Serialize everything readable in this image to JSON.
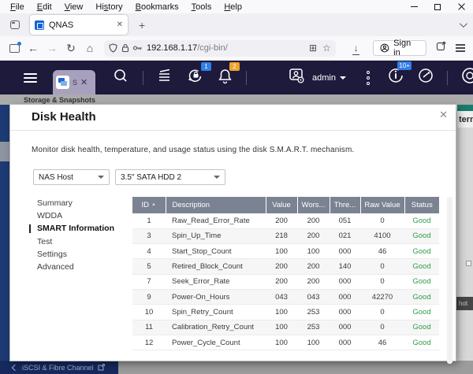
{
  "icons": {
    "back": "←",
    "forward": "→",
    "reload": "↻",
    "home": "⌂",
    "star": "☆",
    "downloads": "↓",
    "newtab": "+",
    "tab_close": "✕",
    "dialog_close": "✕",
    "kebab": "⋮",
    "sort_asc": "▲",
    "library": "⊞"
  },
  "browser": {
    "menu_items": [
      {
        "label": "File",
        "u": 0
      },
      {
        "label": "Edit",
        "u": 0
      },
      {
        "label": "View",
        "u": 0
      },
      {
        "label": "History",
        "u": 2
      },
      {
        "label": "Bookmarks",
        "u": 0
      },
      {
        "label": "Tools",
        "u": 0
      },
      {
        "label": "Help",
        "u": 0
      }
    ],
    "tab_title": "QNAS",
    "url_host": "192.168.1.17",
    "url_path": "/cgi-bin/",
    "sign_in_label": "Sign in"
  },
  "qnap_header": {
    "app_tab_label": "S",
    "user_label": "admin",
    "badges": {
      "sync": "1",
      "notifications": "2",
      "info": "10+"
    },
    "badge_colors": {
      "sync": "#2f7fe8",
      "notifications": "#f0a32f",
      "info": "#2f7fe8"
    }
  },
  "app_window": {
    "title": "Storage & Snapshots",
    "right_fragment_text": "tern",
    "right_fragment_chip": "hot",
    "bottom_bar_label": "iSCSI & Fibre Channel"
  },
  "dialog": {
    "title": "Disk Health",
    "description": "Monitor disk health, temperature, and usage status using the disk S.M.A.R.T. mechanism.",
    "selectors": [
      {
        "value": "NAS Host"
      },
      {
        "value": "3.5\" SATA HDD 2"
      }
    ],
    "nav_items": [
      "Summary",
      "WDDA",
      "SMART Information",
      "Test",
      "Settings",
      "Advanced"
    ],
    "active_nav": "SMART Information",
    "table": {
      "columns": [
        "ID",
        "Description",
        "Value",
        "Wors...",
        "Thre...",
        "Raw Value",
        "Status"
      ],
      "rows": [
        [
          "1",
          "Raw_Read_Error_Rate",
          "200",
          "200",
          "051",
          "0",
          "Good"
        ],
        [
          "3",
          "Spin_Up_Time",
          "218",
          "200",
          "021",
          "4100",
          "Good"
        ],
        [
          "4",
          "Start_Stop_Count",
          "100",
          "100",
          "000",
          "46",
          "Good"
        ],
        [
          "5",
          "Retired_Block_Count",
          "200",
          "200",
          "140",
          "0",
          "Good"
        ],
        [
          "7",
          "Seek_Error_Rate",
          "200",
          "200",
          "000",
          "0",
          "Good"
        ],
        [
          "9",
          "Power-On_Hours",
          "043",
          "043",
          "000",
          "42270",
          "Good"
        ],
        [
          "10",
          "Spin_Retry_Count",
          "100",
          "253",
          "000",
          "0",
          "Good"
        ],
        [
          "11",
          "Calibration_Retry_Count",
          "100",
          "253",
          "000",
          "0",
          "Good"
        ],
        [
          "12",
          "Power_Cycle_Count",
          "100",
          "100",
          "000",
          "46",
          "Good"
        ]
      ],
      "status_color": "#2e9d4b"
    }
  }
}
